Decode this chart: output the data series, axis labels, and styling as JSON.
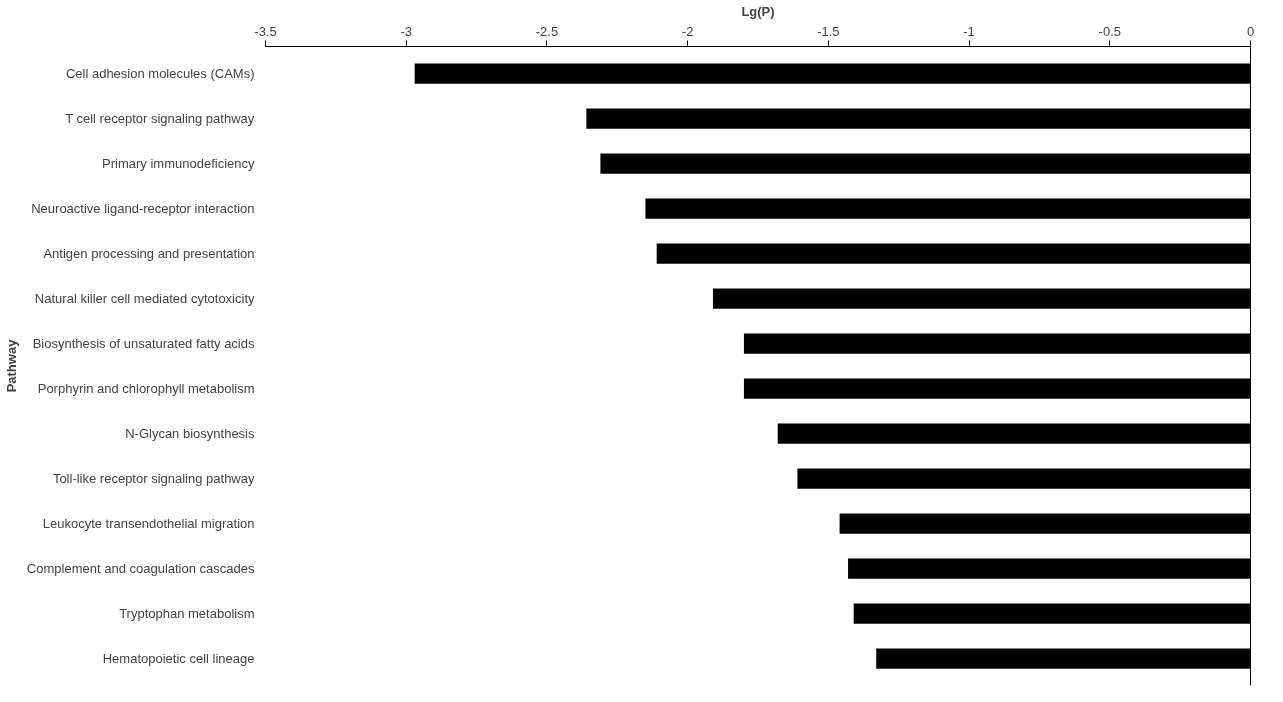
{
  "chart_data": {
    "type": "bar",
    "orientation": "horizontal",
    "xlabel": "Lg(P)",
    "ylabel": "Pathway",
    "categories": [
      "Cell adhesion molecules (CAMs)",
      "T cell receptor signaling pathway",
      "Primary immunodeficiency",
      "Neuroactive ligand-receptor interaction",
      "Antigen processing and presentation",
      "Natural killer cell mediated cytotoxicity",
      "Biosynthesis of unsaturated fatty acids",
      "Porphyrin and chlorophyll metabolism",
      "N-Glycan biosynthesis",
      "Toll-like receptor signaling pathway",
      "Leukocyte transendothelial migration",
      "Complement and coagulation cascades",
      "Tryptophan metabolism",
      "Hematopoietic cell lineage"
    ],
    "values": [
      -2.97,
      -2.36,
      -2.31,
      -2.15,
      -2.11,
      -1.91,
      -1.8,
      -1.8,
      -1.68,
      -1.61,
      -1.46,
      -1.43,
      -1.41,
      -1.33
    ],
    "color": "#000000",
    "xlim": [
      -3.5,
      0
    ],
    "xticks": [
      -3.5,
      -3,
      -2.5,
      -2,
      -1.5,
      -1,
      -0.5,
      0
    ],
    "grid": false
  }
}
